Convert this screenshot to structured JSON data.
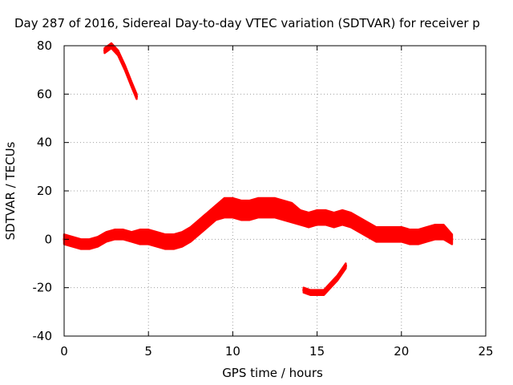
{
  "chart_data": {
    "type": "line",
    "title": "Day 287 of 2016, Sidereal Day-to-day VTEC variation (SDTVAR) for receiver p",
    "xlabel": "GPS time / hours",
    "ylabel": "SDTVAR / TECUs",
    "xlim": [
      0,
      25
    ],
    "ylim": [
      -40,
      80
    ],
    "x_ticks": [
      0,
      5,
      10,
      15,
      20,
      25
    ],
    "y_ticks": [
      -40,
      -20,
      0,
      20,
      40,
      60,
      80
    ],
    "grid": true,
    "series_color": "#ff0000",
    "series": [
      {
        "x": [
          0,
          0.5,
          1,
          1.5,
          2,
          2.5,
          3,
          3.5,
          4,
          4.5,
          5,
          5.5,
          6,
          6.5,
          7,
          7.5,
          8,
          8.5,
          9,
          9.5,
          10,
          10.5,
          11,
          11.5,
          12,
          12.5,
          13,
          13.5,
          14,
          14.5,
          15,
          15.5,
          16,
          16.5,
          17,
          17.5,
          18,
          18.5,
          19,
          19.5,
          20,
          20.5,
          21,
          21.5,
          22,
          22.5,
          23
        ],
        "y": [
          0,
          -1,
          -2,
          -2,
          -1,
          1,
          2,
          2,
          1,
          1,
          1,
          0,
          -1,
          -1,
          0,
          2,
          5,
          8,
          11,
          13,
          13,
          12,
          12,
          13,
          13,
          13,
          12,
          11,
          9,
          8,
          9,
          9,
          8,
          9,
          8,
          6,
          4,
          2,
          2,
          2,
          2,
          1,
          1,
          2,
          3,
          3,
          0
        ],
        "band": [
          2,
          2,
          2,
          2,
          2,
          2,
          2,
          2,
          2,
          3,
          3,
          3,
          3,
          3,
          3,
          3,
          3,
          3,
          3,
          4,
          4,
          4,
          4,
          4,
          4,
          4,
          4,
          4,
          3,
          3,
          3,
          3,
          3,
          3,
          3,
          3,
          3,
          3,
          3,
          3,
          3,
          3,
          3,
          3,
          3,
          3,
          2
        ]
      },
      {
        "x": [
          2.4,
          2.8,
          3.2,
          3.6,
          4.0,
          4.3
        ],
        "y": [
          78,
          80,
          77,
          71,
          64,
          59
        ],
        "band": [
          1,
          1,
          1,
          1,
          1,
          1
        ]
      },
      {
        "x": [
          14.2,
          14.6,
          15.0,
          15.4,
          15.8,
          16.2,
          16.7
        ],
        "y": [
          -21,
          -22,
          -22,
          -22,
          -19,
          -16,
          -11
        ],
        "band": [
          1,
          1,
          1,
          1,
          1,
          1,
          1
        ]
      }
    ]
  }
}
